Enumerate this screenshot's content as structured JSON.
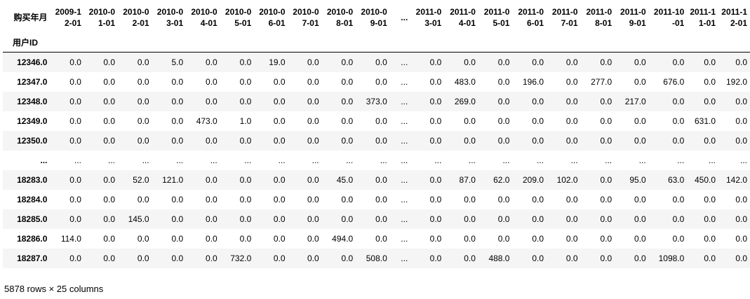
{
  "header": {
    "corner_label": "购买年月",
    "index_name": "用户ID",
    "columns": [
      "2009-12-01",
      "2010-01-01",
      "2010-02-01",
      "2010-03-01",
      "2010-04-01",
      "2010-05-01",
      "2010-06-01",
      "2010-07-01",
      "2010-08-01",
      "2010-09-01",
      "...",
      "2011-03-01",
      "2011-04-01",
      "2011-05-01",
      "2011-06-01",
      "2011-07-01",
      "2011-08-01",
      "2011-09-01",
      "2011-10-01",
      "2011-11-01",
      "2011-12-01"
    ]
  },
  "rows": [
    {
      "id": "12346.0",
      "values": [
        "0.0",
        "0.0",
        "0.0",
        "5.0",
        "0.0",
        "0.0",
        "19.0",
        "0.0",
        "0.0",
        "0.0",
        "...",
        "0.0",
        "0.0",
        "0.0",
        "0.0",
        "0.0",
        "0.0",
        "0.0",
        "0.0",
        "0.0",
        "0.0"
      ]
    },
    {
      "id": "12347.0",
      "values": [
        "0.0",
        "0.0",
        "0.0",
        "0.0",
        "0.0",
        "0.0",
        "0.0",
        "0.0",
        "0.0",
        "0.0",
        "...",
        "0.0",
        "483.0",
        "0.0",
        "196.0",
        "0.0",
        "277.0",
        "0.0",
        "676.0",
        "0.0",
        "192.0"
      ]
    },
    {
      "id": "12348.0",
      "values": [
        "0.0",
        "0.0",
        "0.0",
        "0.0",
        "0.0",
        "0.0",
        "0.0",
        "0.0",
        "0.0",
        "373.0",
        "...",
        "0.0",
        "269.0",
        "0.0",
        "0.0",
        "0.0",
        "0.0",
        "217.0",
        "0.0",
        "0.0",
        "0.0"
      ]
    },
    {
      "id": "12349.0",
      "values": [
        "0.0",
        "0.0",
        "0.0",
        "0.0",
        "473.0",
        "1.0",
        "0.0",
        "0.0",
        "0.0",
        "0.0",
        "...",
        "0.0",
        "0.0",
        "0.0",
        "0.0",
        "0.0",
        "0.0",
        "0.0",
        "0.0",
        "631.0",
        "0.0"
      ]
    },
    {
      "id": "12350.0",
      "values": [
        "0.0",
        "0.0",
        "0.0",
        "0.0",
        "0.0",
        "0.0",
        "0.0",
        "0.0",
        "0.0",
        "0.0",
        "...",
        "0.0",
        "0.0",
        "0.0",
        "0.0",
        "0.0",
        "0.0",
        "0.0",
        "0.0",
        "0.0",
        "0.0"
      ]
    },
    {
      "id": "...",
      "values": [
        "...",
        "...",
        "...",
        "...",
        "...",
        "...",
        "...",
        "...",
        "...",
        "...",
        "...",
        "...",
        "...",
        "...",
        "...",
        "...",
        "...",
        "...",
        "...",
        "...",
        "..."
      ]
    },
    {
      "id": "18283.0",
      "values": [
        "0.0",
        "0.0",
        "52.0",
        "121.0",
        "0.0",
        "0.0",
        "0.0",
        "0.0",
        "45.0",
        "0.0",
        "...",
        "0.0",
        "87.0",
        "62.0",
        "209.0",
        "102.0",
        "0.0",
        "95.0",
        "63.0",
        "450.0",
        "142.0"
      ]
    },
    {
      "id": "18284.0",
      "values": [
        "0.0",
        "0.0",
        "0.0",
        "0.0",
        "0.0",
        "0.0",
        "0.0",
        "0.0",
        "0.0",
        "0.0",
        "...",
        "0.0",
        "0.0",
        "0.0",
        "0.0",
        "0.0",
        "0.0",
        "0.0",
        "0.0",
        "0.0",
        "0.0"
      ]
    },
    {
      "id": "18285.0",
      "values": [
        "0.0",
        "0.0",
        "145.0",
        "0.0",
        "0.0",
        "0.0",
        "0.0",
        "0.0",
        "0.0",
        "0.0",
        "...",
        "0.0",
        "0.0",
        "0.0",
        "0.0",
        "0.0",
        "0.0",
        "0.0",
        "0.0",
        "0.0",
        "0.0"
      ]
    },
    {
      "id": "18286.0",
      "values": [
        "114.0",
        "0.0",
        "0.0",
        "0.0",
        "0.0",
        "0.0",
        "0.0",
        "0.0",
        "494.0",
        "0.0",
        "...",
        "0.0",
        "0.0",
        "0.0",
        "0.0",
        "0.0",
        "0.0",
        "0.0",
        "0.0",
        "0.0",
        "0.0"
      ]
    },
    {
      "id": "18287.0",
      "values": [
        "0.0",
        "0.0",
        "0.0",
        "0.0",
        "0.0",
        "732.0",
        "0.0",
        "0.0",
        "0.0",
        "508.0",
        "...",
        "0.0",
        "0.0",
        "488.0",
        "0.0",
        "0.0",
        "0.0",
        "0.0",
        "1098.0",
        "0.0",
        "0.0"
      ]
    }
  ],
  "footer": {
    "shape_text": "5878 rows × 25 columns"
  }
}
